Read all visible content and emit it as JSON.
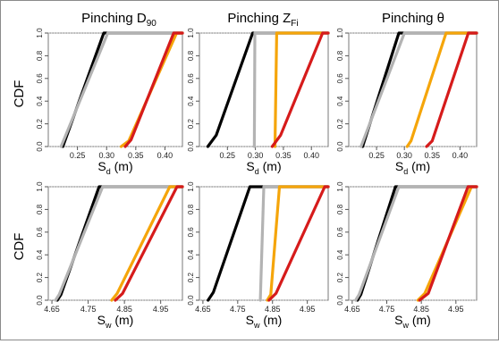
{
  "figure": {
    "y_label_text": "CDF",
    "columns": [
      {
        "pre": "Pinching ",
        "main": "D",
        "sub": "90"
      },
      {
        "pre": "Pinching ",
        "main": "Z",
        "sub": "Fi"
      },
      {
        "pre": "Pinching θ",
        "main": "",
        "sub": ""
      }
    ]
  },
  "colors": {
    "black": "#000000",
    "gray": "#b3b3b3",
    "orange": "#f5a50a",
    "red": "#d61b1b"
  },
  "chart_data": [
    {
      "type": "line",
      "panel": "top-left",
      "xlabel": {
        "main": "S",
        "sub": "d",
        "unit": " (m)"
      },
      "ylabel": "CDF",
      "xlim": [
        0.2,
        0.43
      ],
      "ylim": [
        0,
        1.0
      ],
      "xticks": [
        "0.25",
        "0.30",
        "0.35",
        "0.40"
      ],
      "yticks": [
        "0.0",
        "0.2",
        "0.4",
        "0.6",
        "0.8",
        "1.0"
      ],
      "series": [
        {
          "color": "black",
          "points": [
            [
              0.225,
              0
            ],
            [
              0.295,
              1.0
            ],
            [
              0.43,
              1.0
            ]
          ]
        },
        {
          "color": "gray",
          "points": [
            [
              0.222,
              0
            ],
            [
              0.302,
              1.0
            ],
            [
              0.43,
              1.0
            ]
          ]
        },
        {
          "color": "orange",
          "points": [
            [
              0.325,
              0
            ],
            [
              0.338,
              0.05
            ],
            [
              0.42,
              1.0
            ],
            [
              0.43,
              1.0
            ]
          ]
        },
        {
          "color": "red",
          "points": [
            [
              0.332,
              0
            ],
            [
              0.342,
              0.06
            ],
            [
              0.415,
              1.0
            ],
            [
              0.43,
              1.0
            ]
          ]
        }
      ]
    },
    {
      "type": "line",
      "panel": "top-middle",
      "xlabel": {
        "main": "S",
        "sub": "d",
        "unit": " (m)"
      },
      "ylabel": "",
      "xlim": [
        0.2,
        0.43
      ],
      "ylim": [
        0,
        1.0
      ],
      "xticks": [
        "0.25",
        "0.30",
        "0.35",
        "0.40"
      ],
      "yticks": [
        "0.0",
        "0.2",
        "0.4",
        "0.6",
        "0.8",
        "1.0"
      ],
      "series": [
        {
          "color": "black",
          "points": [
            [
              0.215,
              0
            ],
            [
              0.23,
              0.1
            ],
            [
              0.295,
              1.0
            ],
            [
              0.43,
              1.0
            ]
          ]
        },
        {
          "color": "gray",
          "points": [
            [
              0.298,
              0
            ],
            [
              0.299,
              1.0
            ],
            [
              0.43,
              1.0
            ]
          ]
        },
        {
          "color": "orange",
          "points": [
            [
              0.335,
              0
            ],
            [
              0.338,
              1.0
            ],
            [
              0.43,
              1.0
            ]
          ]
        },
        {
          "color": "red",
          "points": [
            [
              0.33,
              0
            ],
            [
              0.345,
              0.1
            ],
            [
              0.42,
              1.0
            ],
            [
              0.43,
              1.0
            ]
          ]
        }
      ]
    },
    {
      "type": "line",
      "panel": "top-right",
      "xlabel": {
        "main": "S",
        "sub": "d",
        "unit": " (m)"
      },
      "ylabel": "",
      "xlim": [
        0.2,
        0.43
      ],
      "ylim": [
        0,
        1.0
      ],
      "xticks": [
        "0.25",
        "0.30",
        "0.35",
        "0.40"
      ],
      "yticks": [
        "0.0",
        "0.2",
        "0.4",
        "0.6",
        "0.8",
        "1.0"
      ],
      "series": [
        {
          "color": "black",
          "points": [
            [
              0.225,
              0
            ],
            [
              0.29,
              1.0
            ],
            [
              0.43,
              1.0
            ]
          ]
        },
        {
          "color": "gray",
          "points": [
            [
              0.222,
              0
            ],
            [
              0.3,
              1.0
            ],
            [
              0.43,
              1.0
            ]
          ]
        },
        {
          "color": "orange",
          "points": [
            [
              0.305,
              0
            ],
            [
              0.312,
              0.05
            ],
            [
              0.375,
              1.0
            ],
            [
              0.43,
              1.0
            ]
          ]
        },
        {
          "color": "red",
          "points": [
            [
              0.34,
              0
            ],
            [
              0.35,
              0.05
            ],
            [
              0.415,
              1.0
            ],
            [
              0.43,
              1.0
            ]
          ]
        }
      ]
    },
    {
      "type": "line",
      "panel": "bottom-left",
      "xlabel": {
        "main": "S",
        "sub": "w",
        "unit": " (m)"
      },
      "ylabel": "CDF",
      "xlim": [
        4.64,
        5.01
      ],
      "ylim": [
        0,
        1.0
      ],
      "xticks": [
        "4.65",
        "4.75",
        "4.85",
        "4.95"
      ],
      "yticks": [
        "0.0",
        "0.2",
        "0.4",
        "0.6",
        "0.8",
        "1.0"
      ],
      "series": [
        {
          "color": "black",
          "points": [
            [
              4.665,
              0
            ],
            [
              4.675,
              0.05
            ],
            [
              4.78,
              1.0
            ],
            [
              5.01,
              1.0
            ]
          ]
        },
        {
          "color": "gray",
          "points": [
            [
              4.66,
              0
            ],
            [
              4.67,
              0.05
            ],
            [
              4.79,
              1.0
            ],
            [
              5.01,
              1.0
            ]
          ]
        },
        {
          "color": "orange",
          "points": [
            [
              4.815,
              0
            ],
            [
              4.83,
              0.06
            ],
            [
              4.975,
              1.0
            ],
            [
              5.01,
              1.0
            ]
          ]
        },
        {
          "color": "red",
          "points": [
            [
              4.825,
              0
            ],
            [
              4.845,
              0.06
            ],
            [
              4.995,
              1.0
            ],
            [
              5.01,
              1.0
            ]
          ]
        }
      ]
    },
    {
      "type": "line",
      "panel": "bottom-middle",
      "xlabel": {
        "main": "S",
        "sub": "w",
        "unit": " (m)"
      },
      "ylabel": "",
      "xlim": [
        4.64,
        5.01
      ],
      "ylim": [
        0,
        1.0
      ],
      "xticks": [
        "4.65",
        "4.75",
        "4.85",
        "4.95"
      ],
      "yticks": [
        "0.0",
        "0.2",
        "0.4",
        "0.6",
        "0.8",
        "1.0"
      ],
      "series": [
        {
          "color": "black",
          "points": [
            [
              4.665,
              0
            ],
            [
              4.68,
              0.07
            ],
            [
              4.785,
              1.0
            ],
            [
              5.01,
              1.0
            ]
          ]
        },
        {
          "color": "gray",
          "points": [
            [
              4.815,
              0
            ],
            [
              4.825,
              1.0
            ],
            [
              5.01,
              1.0
            ]
          ]
        },
        {
          "color": "orange",
          "points": [
            [
              4.835,
              0
            ],
            [
              4.845,
              0.05
            ],
            [
              4.87,
              1.0
            ],
            [
              5.01,
              1.0
            ]
          ]
        },
        {
          "color": "red",
          "points": [
            [
              4.84,
              0
            ],
            [
              4.86,
              0.06
            ],
            [
              5.0,
              1.0
            ],
            [
              5.01,
              1.0
            ]
          ]
        }
      ]
    },
    {
      "type": "line",
      "panel": "bottom-right",
      "xlabel": {
        "main": "S",
        "sub": "w",
        "unit": " (m)"
      },
      "ylabel": "",
      "xlim": [
        4.64,
        5.01
      ],
      "ylim": [
        0,
        1.0
      ],
      "xticks": [
        "4.65",
        "4.75",
        "4.85",
        "4.95"
      ],
      "yticks": [
        "0.0",
        "0.2",
        "0.4",
        "0.6",
        "0.8",
        "1.0"
      ],
      "series": [
        {
          "color": "black",
          "points": [
            [
              4.665,
              0
            ],
            [
              4.675,
              0.05
            ],
            [
              4.775,
              1.0
            ],
            [
              5.01,
              1.0
            ]
          ]
        },
        {
          "color": "gray",
          "points": [
            [
              4.66,
              0
            ],
            [
              4.67,
              0.05
            ],
            [
              4.785,
              1.0
            ],
            [
              5.01,
              1.0
            ]
          ]
        },
        {
          "color": "orange",
          "points": [
            [
              4.84,
              0
            ],
            [
              4.86,
              0.06
            ],
            [
              4.995,
              1.0
            ],
            [
              5.01,
              1.0
            ]
          ]
        },
        {
          "color": "red",
          "points": [
            [
              4.845,
              0
            ],
            [
              4.87,
              0.06
            ],
            [
              4.985,
              1.0
            ],
            [
              5.01,
              1.0
            ]
          ]
        }
      ]
    }
  ]
}
